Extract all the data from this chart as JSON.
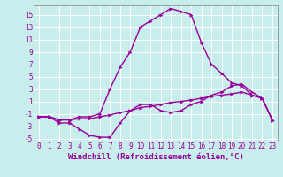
{
  "bg_color": "#c8eded",
  "line_color": "#990099",
  "grid_color": "#ffffff",
  "xlim": [
    -0.5,
    23.5
  ],
  "ylim": [
    -5.5,
    16.5
  ],
  "yticks": [
    -5,
    -3,
    -1,
    1,
    3,
    5,
    7,
    9,
    11,
    13,
    15
  ],
  "xticks": [
    0,
    1,
    2,
    3,
    4,
    5,
    6,
    7,
    8,
    9,
    10,
    11,
    12,
    13,
    14,
    15,
    16,
    17,
    18,
    19,
    20,
    21,
    22,
    23
  ],
  "line1_x": [
    0,
    1,
    2,
    3,
    4,
    5,
    6,
    7,
    8,
    9,
    10,
    11,
    12,
    13,
    14,
    15,
    16,
    17,
    18,
    19,
    20,
    21,
    22,
    23
  ],
  "line1_y": [
    -1.5,
    -1.5,
    -2.5,
    -2.5,
    -3.5,
    -4.5,
    -4.8,
    -4.8,
    -2.5,
    -0.5,
    0.5,
    0.5,
    -0.5,
    -0.8,
    -0.5,
    0.5,
    1.0,
    2.0,
    2.5,
    3.5,
    3.8,
    2.5,
    1.5,
    -2.0
  ],
  "line2_x": [
    0,
    1,
    2,
    3,
    4,
    5,
    6,
    7,
    8,
    9,
    10,
    11,
    12,
    13,
    14,
    15,
    16,
    17,
    18,
    19,
    20,
    21,
    22,
    23
  ],
  "line2_y": [
    -1.5,
    -1.5,
    -2.0,
    -2.0,
    -1.5,
    -1.5,
    -1.0,
    3.0,
    6.5,
    9.0,
    13.0,
    14.0,
    15.0,
    16.0,
    15.5,
    15.0,
    10.5,
    7.0,
    5.5,
    4.0,
    3.5,
    2.0,
    1.5,
    -2.0
  ],
  "line3_x": [
    0,
    1,
    2,
    3,
    4,
    5,
    6,
    7,
    8,
    9,
    10,
    11,
    12,
    13,
    14,
    15,
    16,
    17,
    18,
    19,
    20,
    21,
    22,
    23
  ],
  "line3_y": [
    -1.5,
    -1.5,
    -2.0,
    -2.0,
    -1.8,
    -1.8,
    -1.5,
    -1.2,
    -0.8,
    -0.5,
    0.0,
    0.2,
    0.5,
    0.8,
    1.0,
    1.2,
    1.5,
    1.8,
    2.0,
    2.2,
    2.5,
    2.0,
    1.5,
    -2.0
  ],
  "xlabel": "Windchill (Refroidissement éolien,°C)",
  "markersize": 2.5,
  "linewidth": 1.0,
  "tick_fontsize": 5.5,
  "label_fontsize": 6.5
}
